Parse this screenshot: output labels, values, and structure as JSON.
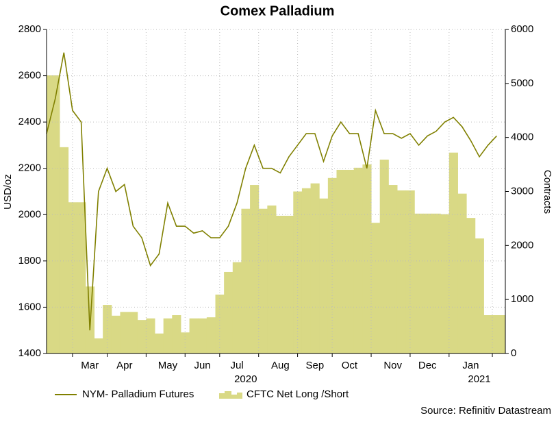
{
  "chart_data": {
    "type": "line",
    "title": "Comex Palladium",
    "ylabel": "USD/oz",
    "y2label": "Contracts",
    "source": "Source: Refinitiv Datastream",
    "categories": [
      null,
      null,
      null,
      null,
      null,
      "Mar",
      null,
      null,
      null,
      "Apr",
      null,
      null,
      null,
      null,
      "May",
      null,
      null,
      null,
      "Jun",
      null,
      null,
      null,
      "Jul",
      null,
      null,
      null,
      null,
      "Aug",
      null,
      null,
      null,
      "Sep",
      null,
      null,
      null,
      "Oct",
      null,
      null,
      null,
      null,
      "Nov",
      null,
      null,
      null,
      "Dec",
      null,
      null,
      null,
      null,
      "Jan",
      null,
      null,
      null,
      null
    ],
    "x_groups": [
      {
        "label": "2020",
        "count": 47
      },
      {
        "label": "2021",
        "count": 7
      }
    ],
    "series": [
      {
        "name": "NYM- Palladium Futures",
        "type": "line",
        "color": "#808000",
        "values": [
          2350,
          2500,
          2700,
          2450,
          2400,
          1500,
          2100,
          2200,
          2100,
          2130,
          1950,
          1900,
          1780,
          1830,
          2050,
          1950,
          1950,
          1920,
          1930,
          1900,
          1900,
          1950,
          2050,
          2200,
          2300,
          2200,
          2200,
          2180,
          2250,
          2300,
          2350,
          2350,
          2230,
          2340,
          2400,
          2350,
          2350,
          2200,
          2450,
          2350,
          2350,
          2330,
          2350,
          2300,
          2340,
          2360,
          2400,
          2420,
          2380,
          2320,
          2250,
          2300,
          2340,
          null
        ]
      },
      {
        "name": "CFTC Net Long /Short",
        "type": "area",
        "axis": "y2",
        "color": "#d9d985",
        "values": [
          5150,
          5150,
          3820,
          2800,
          2800,
          1240,
          280,
          900,
          700,
          770,
          770,
          620,
          650,
          370,
          650,
          710,
          390,
          650,
          650,
          670,
          1090,
          1510,
          1690,
          2680,
          3120,
          2680,
          2740,
          2550,
          2550,
          3000,
          3060,
          3150,
          2870,
          3250,
          3400,
          3400,
          3440,
          3500,
          2420,
          3590,
          3120,
          3020,
          3020,
          2590,
          2590,
          2590,
          2580,
          3720,
          2960,
          2510,
          2130,
          710,
          710,
          710
        ]
      }
    ],
    "ylim": [
      1400,
      2800
    ],
    "yticks": [
      1400,
      1600,
      1800,
      2000,
      2200,
      2400,
      2600,
      2800
    ],
    "y2lim": [
      0,
      6000
    ],
    "y2ticks": [
      0,
      1000,
      2000,
      3000,
      4000,
      5000,
      6000
    ],
    "grid": true,
    "legend": "bottom"
  }
}
